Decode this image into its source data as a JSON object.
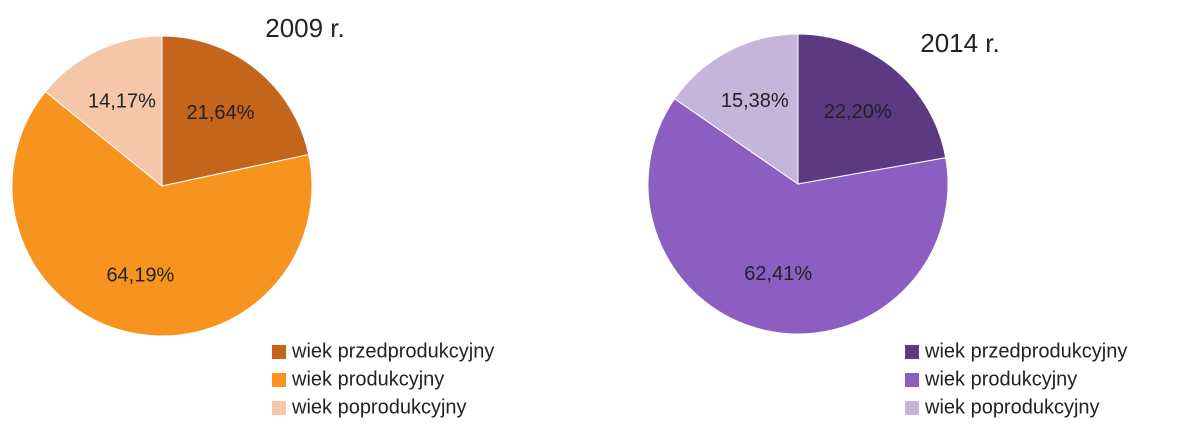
{
  "chart_data": [
    {
      "type": "pie",
      "title": "2009 r.",
      "categories": [
        "wiek przedprodukcyjny",
        "wiek produkcyjny",
        "wiek poprodukcyjny"
      ],
      "values": [
        21.64,
        64.19,
        14.17
      ],
      "value_labels": [
        "21,64%",
        "64,19%",
        "14,17%"
      ],
      "colors": [
        "#c4651c",
        "#f7941f",
        "#f6c6a9"
      ]
    },
    {
      "type": "pie",
      "title": "2014 r.",
      "categories": [
        "wiek przedprodukcyjny",
        "wiek produkcyjny",
        "wiek poprodukcyjny"
      ],
      "values": [
        22.2,
        62.41,
        15.38
      ],
      "value_labels": [
        "22,20%",
        "62,41%",
        "15,38%"
      ],
      "colors": [
        "#5c3a82",
        "#8c5ec2",
        "#c5b5db"
      ]
    }
  ]
}
